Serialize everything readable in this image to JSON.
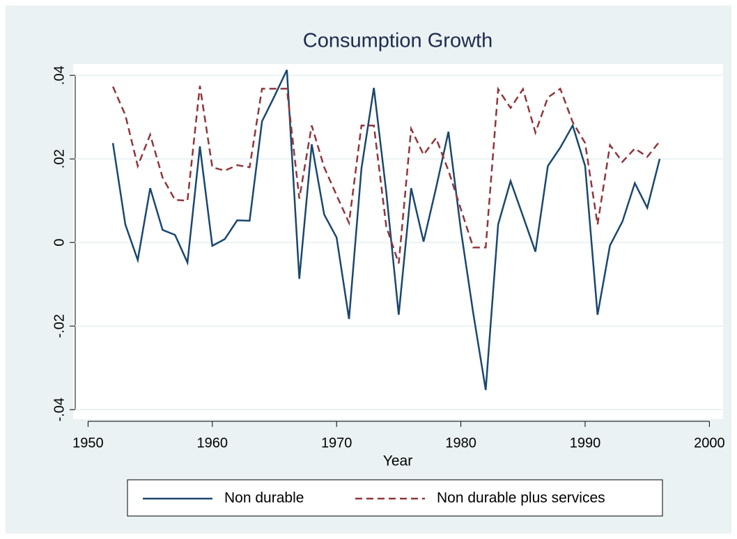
{
  "chart_data": {
    "type": "line",
    "title": "Consumption Growth",
    "x_label": "Year",
    "x": [
      1952,
      1953,
      1954,
      1955,
      1956,
      1957,
      1958,
      1959,
      1960,
      1961,
      1962,
      1963,
      1964,
      1965,
      1966,
      1967,
      1968,
      1969,
      1970,
      1971,
      1972,
      1973,
      1974,
      1975,
      1976,
      1977,
      1978,
      1979,
      1980,
      1981,
      1982,
      1983,
      1984,
      1985,
      1986,
      1987,
      1988,
      1989,
      1990,
      1991,
      1992,
      1993,
      1994,
      1995,
      1996
    ],
    "series": [
      {
        "name": "Non durable",
        "color": "#1a476f",
        "dash": false,
        "values": [
          0.0238,
          0.0043,
          -0.0042,
          0.013,
          0.003,
          0.0018,
          -0.0048,
          0.023,
          -0.0008,
          0.0008,
          0.0053,
          0.0052,
          0.029,
          0.035,
          0.0413,
          -0.0087,
          0.0235,
          0.0067,
          0.0012,
          -0.0183,
          0.0177,
          0.037,
          0.012,
          -0.0173,
          0.013,
          0.0002,
          0.013,
          0.0265,
          0.003,
          -0.017,
          -0.0353,
          0.0043,
          0.0147,
          0.0063,
          -0.0022,
          0.0183,
          0.0227,
          0.028,
          0.0183,
          -0.0173,
          -0.0007,
          0.005,
          0.0142,
          0.0083,
          0.02
        ]
      },
      {
        "name": "Non durable plus services",
        "color": "#90353b",
        "dash": true,
        "values": [
          0.0373,
          0.0305,
          0.0183,
          0.0258,
          0.0155,
          0.0102,
          0.01,
          0.0375,
          0.018,
          0.0172,
          0.0185,
          0.018,
          0.0368,
          0.0368,
          0.0368,
          0.0105,
          0.028,
          0.018,
          0.0113,
          0.0047,
          0.028,
          0.028,
          0.0038,
          -0.005,
          0.0272,
          0.021,
          0.025,
          0.0172,
          0.008,
          -0.0012,
          -0.0012,
          0.0367,
          0.0322,
          0.0367,
          0.0263,
          0.0347,
          0.0368,
          0.0288,
          0.0238,
          0.0043,
          0.0233,
          0.0193,
          0.0225,
          0.0205,
          0.0242
        ]
      }
    ],
    "xlim": [
      1948.8,
      2001.1
    ],
    "xticks": [
      1950,
      1960,
      1970,
      1980,
      1990,
      2000
    ],
    "ylim": [
      -0.0423,
      0.0427
    ],
    "yticks": [
      {
        "value": -0.04,
        "label": "-.04"
      },
      {
        "value": -0.02,
        "label": "-.02"
      },
      0,
      {
        "value": 0.02,
        "label": ".02"
      },
      {
        "value": 0.04,
        "label": ".04"
      }
    ],
    "grid": true,
    "legend": "bottom"
  }
}
